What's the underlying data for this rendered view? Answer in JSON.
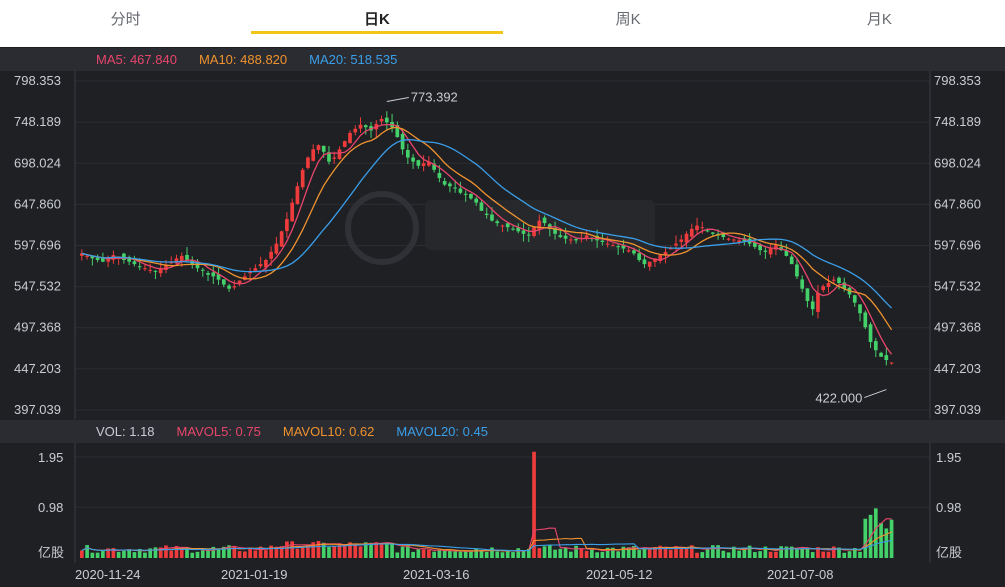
{
  "tabs": [
    {
      "label": "分时",
      "active": false
    },
    {
      "label": "日K",
      "active": true
    },
    {
      "label": "周K",
      "active": false
    },
    {
      "label": "月K",
      "active": false
    }
  ],
  "ma_legend": {
    "ma5": "MA5: 467.840",
    "ma10": "MA10: 488.820",
    "ma20": "MA20: 518.535"
  },
  "vol_legend": {
    "vol": "VOL: 1.18",
    "mavol5": "MAVOL5: 0.75",
    "mavol10": "MAVOL10: 0.62",
    "mavol20": "MAVOL20: 0.45"
  },
  "colors": {
    "up": "#ee3b3b",
    "down": "#45d16a",
    "ma5": "#e8456b",
    "ma10": "#f0922e",
    "ma20": "#3a9ee8",
    "accent": "#f2c51a",
    "background": "#1f2024"
  },
  "chart_data": [
    {
      "type": "candlestick",
      "y_ticks": [
        "798.353",
        "748.189",
        "698.024",
        "647.860",
        "597.696",
        "547.532",
        "497.368",
        "447.203",
        "397.039"
      ],
      "ylim": [
        397.039,
        798.353
      ],
      "annotations": [
        {
          "text": "773.392",
          "value": 773.392,
          "kind": "max"
        },
        {
          "text": "422.000",
          "value": 422.0,
          "kind": "min"
        }
      ],
      "x_dates": [
        "2020-11-24",
        "2021-01-19",
        "2021-03-16",
        "2021-05-12",
        "2021-07-08"
      ],
      "series_close_approx": [
        588,
        585,
        582,
        580,
        578,
        583,
        586,
        584,
        580,
        578,
        575,
        572,
        570,
        568,
        566,
        570,
        574,
        578,
        582,
        585,
        580,
        574,
        570,
        567,
        562,
        560,
        556,
        550,
        545,
        548,
        555,
        560,
        566,
        570,
        575,
        580,
        590,
        600,
        615,
        630,
        650,
        670,
        690,
        705,
        715,
        720,
        712,
        700,
        705,
        715,
        725,
        735,
        740,
        745,
        742,
        738,
        746,
        752,
        748,
        742,
        730,
        715,
        705,
        700,
        695,
        698,
        700,
        690,
        680,
        672,
        670,
        668,
        662,
        660,
        655,
        650,
        640,
        635,
        628,
        625,
        622,
        620,
        618,
        615,
        612,
        610,
        620,
        628,
        625,
        618,
        612,
        608,
        606,
        605,
        604,
        607,
        610,
        606,
        604,
        602,
        600,
        598,
        596,
        594,
        592,
        588,
        580,
        575,
        578,
        582,
        586,
        590,
        595,
        600,
        605,
        612,
        618,
        622,
        620,
        615,
        612,
        610,
        608,
        606,
        605,
        604,
        603,
        600,
        596,
        592,
        590,
        595,
        598,
        592,
        585,
        575,
        560,
        545,
        530,
        520,
        540,
        548,
        552,
        556,
        552,
        545,
        538,
        528,
        515,
        498,
        480,
        470,
        462,
        458,
        455
      ],
      "volume_ylim": [
        0,
        2.2
      ],
      "volume_ticks": [
        "1.95",
        "0.98",
        "亿股"
      ]
    }
  ]
}
